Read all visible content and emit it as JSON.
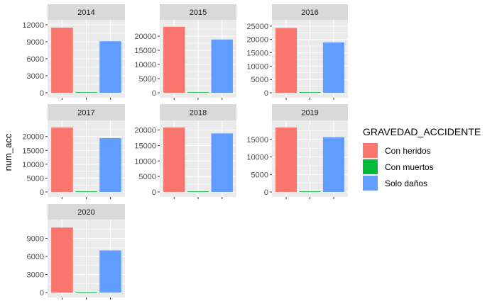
{
  "chart_data": {
    "type": "bar",
    "ylabel": "num_acc",
    "xlabel": "",
    "categories": [
      "Con heridos",
      "Con muertos",
      "Solo daños"
    ],
    "legend": {
      "title": "GRAVEDAD_ACCIDENTE",
      "position": "right",
      "items": [
        "Con heridos",
        "Con muertos",
        "Solo daños"
      ]
    },
    "colors": [
      "#F8766D",
      "#00BA38",
      "#619CFF"
    ],
    "grid": true,
    "facets": [
      {
        "label": "2014",
        "values": [
          11500,
          80,
          9100
        ],
        "ylim": [
          0,
          12000
        ],
        "yticks": [
          0,
          3000,
          6000,
          9000,
          12000
        ]
      },
      {
        "label": "2015",
        "values": [
          23300,
          100,
          18800
        ],
        "ylim": [
          0,
          24000
        ],
        "yticks": [
          0,
          5000,
          10000,
          15000,
          20000
        ]
      },
      {
        "label": "2016",
        "values": [
          24300,
          100,
          18900
        ],
        "ylim": [
          0,
          25500
        ],
        "yticks": [
          0,
          5000,
          10000,
          15000,
          20000,
          25000
        ]
      },
      {
        "label": "2017",
        "values": [
          23200,
          100,
          19400
        ],
        "ylim": [
          0,
          24000
        ],
        "yticks": [
          0,
          5000,
          10000,
          15000,
          20000
        ]
      },
      {
        "label": "2018",
        "values": [
          20800,
          80,
          18900
        ],
        "ylim": [
          0,
          21500
        ],
        "yticks": [
          0,
          5000,
          10000,
          15000,
          20000
        ]
      },
      {
        "label": "2019",
        "values": [
          18400,
          70,
          15600
        ],
        "ylim": [
          0,
          19000
        ],
        "yticks": [
          0,
          5000,
          10000,
          15000
        ]
      },
      {
        "label": "2020",
        "values": [
          10800,
          60,
          7000
        ],
        "ylim": [
          0,
          11300
        ],
        "yticks": [
          0,
          3000,
          6000,
          9000
        ]
      }
    ]
  }
}
